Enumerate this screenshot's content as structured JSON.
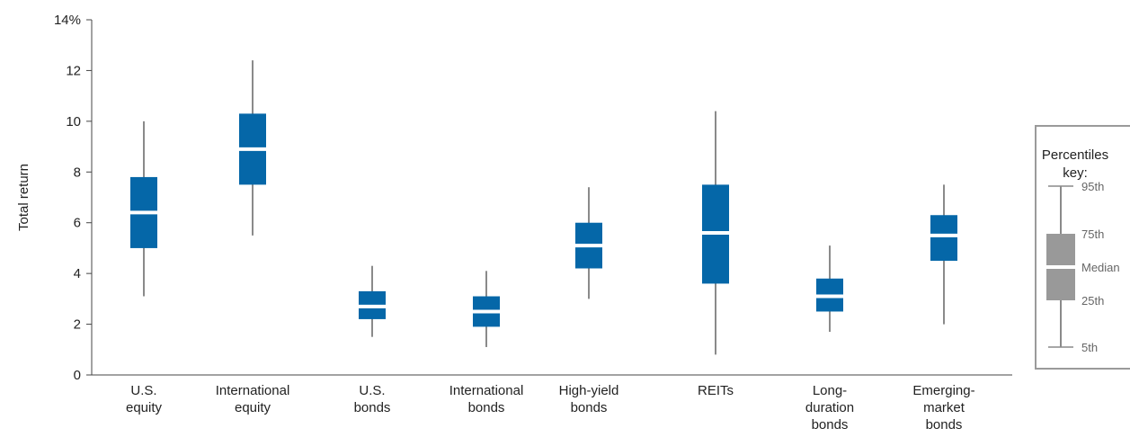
{
  "chart_data": {
    "type": "boxplot",
    "ylabel": "Total return",
    "ylim": [
      0,
      14
    ],
    "y_ticks": [
      0,
      2,
      4,
      6,
      8,
      10,
      12,
      14
    ],
    "y_tick_labels": [
      "0",
      "2",
      "4",
      "6",
      "8",
      "10",
      "12",
      "14%"
    ],
    "categories": [
      {
        "lines": [
          "U.S.",
          "equity"
        ]
      },
      {
        "lines": [
          "International",
          "equity"
        ]
      },
      {
        "lines": [
          "U.S.",
          "bonds"
        ]
      },
      {
        "lines": [
          "International",
          "bonds"
        ]
      },
      {
        "lines": [
          "High-yield",
          "bonds"
        ]
      },
      {
        "lines": [
          "REITs"
        ]
      },
      {
        "lines": [
          "Long-",
          "duration",
          "bonds"
        ]
      },
      {
        "lines": [
          "Emerging-",
          "market",
          "bonds"
        ]
      }
    ],
    "series": [
      {
        "p5": 3.1,
        "p25": 5.0,
        "median": 6.4,
        "p75": 7.8,
        "p95": 10.0
      },
      {
        "p5": 5.5,
        "p25": 7.5,
        "median": 8.9,
        "p75": 10.3,
        "p95": 12.4
      },
      {
        "p5": 1.5,
        "p25": 2.2,
        "median": 2.7,
        "p75": 3.3,
        "p95": 4.3
      },
      {
        "p5": 1.1,
        "p25": 1.9,
        "median": 2.5,
        "p75": 3.1,
        "p95": 4.1
      },
      {
        "p5": 3.0,
        "p25": 4.2,
        "median": 5.1,
        "p75": 6.0,
        "p95": 7.4
      },
      {
        "p5": 0.8,
        "p25": 3.6,
        "median": 5.6,
        "p75": 7.5,
        "p95": 10.4
      },
      {
        "p5": 1.7,
        "p25": 2.5,
        "median": 3.1,
        "p75": 3.8,
        "p95": 5.1
      },
      {
        "p5": 2.0,
        "p25": 4.5,
        "median": 5.5,
        "p75": 6.3,
        "p95": 7.5
      }
    ],
    "colors": {
      "box": "#0567a8",
      "whisker": "#8a8a8a",
      "median": "#ffffff",
      "axis": "#444444",
      "key_box": "#999999",
      "key_border": "#9a9a9a"
    },
    "legend": {
      "placement": "right",
      "title_lines": [
        "Percentiles",
        "key:"
      ],
      "labels": {
        "p95": "95th",
        "p75": "75th",
        "median": "Median",
        "p25": "25th",
        "p5": "5th"
      }
    }
  }
}
